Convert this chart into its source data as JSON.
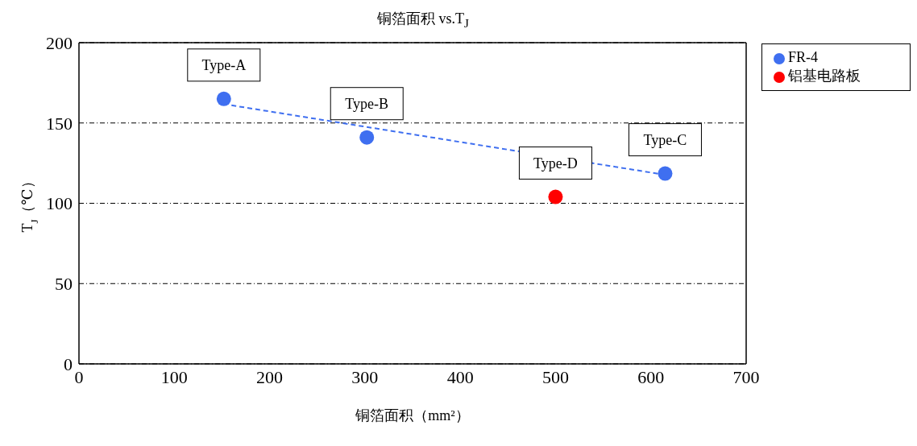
{
  "chart_data": {
    "type": "scatter",
    "title": "铜箔面积 vs.T$_{J}$",
    "xlabel": "铜箔面积（mm²）",
    "ylabel": "T$_{J}$（℃）",
    "xlim": [
      0,
      700
    ],
    "xticks": [
      0,
      100,
      200,
      300,
      400,
      500,
      600,
      700
    ],
    "ylim": [
      0,
      200
    ],
    "yticks": [
      0,
      50,
      100,
      150,
      200
    ],
    "grid": "y",
    "legend": "top right",
    "series": [
      {
        "name": "FR-4",
        "color": "#3f6ff0",
        "marker": "circle",
        "x": [
          152,
          302,
          615
        ],
        "values": [
          165,
          141,
          118.5
        ]
      },
      {
        "name": "铝基电路板",
        "color": "#ff0000",
        "marker": "circle",
        "x": [
          500
        ],
        "values": [
          104
        ]
      },
      {
        "type": "line",
        "color": "#3f6ff0",
        "line_style": "dashed",
        "marker": "none",
        "x": [
          160,
          612
        ],
        "values": [
          161,
          118
        ]
      }
    ],
    "annotations": [
      {
        "text": "Type-A",
        "x": 152,
        "y": 165
      },
      {
        "text": "Type-B",
        "x": 302,
        "y": 141
      },
      {
        "text": "Type-C",
        "x": 615,
        "y": 118.5
      },
      {
        "text": "Type-D",
        "x": 500,
        "y": 104
      }
    ]
  }
}
